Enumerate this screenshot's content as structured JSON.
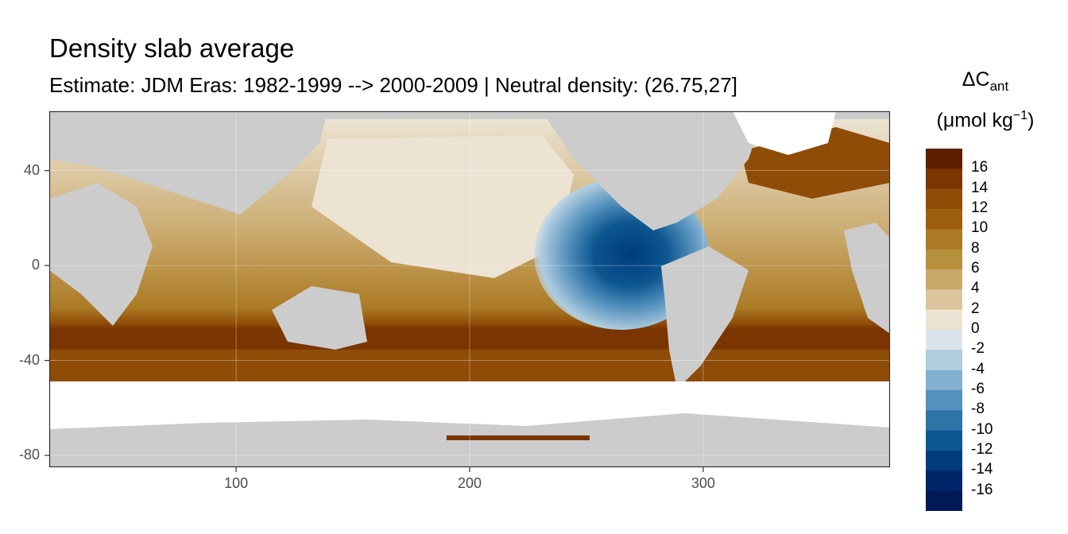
{
  "title": "Density slab average",
  "subtitle": "Estimate: JDM Eras: 1982-1999 --> 2000-2009 | Neutral density: (26.75,27]",
  "legend": {
    "title_line1": "ΔC",
    "title_sub": "ant",
    "title_line2_pre": "(μmol kg",
    "title_line2_sup": "−1",
    "title_line2_post": ")",
    "labels": [
      "16",
      "14",
      "12",
      "10",
      "8",
      "6",
      "4",
      "2",
      "0",
      "-2",
      "-4",
      "-6",
      "-8",
      "-10",
      "-12",
      "-14",
      "-16"
    ],
    "colors": [
      "#5e1f00",
      "#7a3500",
      "#8f4c07",
      "#9d5f0f",
      "#ab7a24",
      "#b88f3c",
      "#c9a86a",
      "#dcc59c",
      "#ece3d2",
      "#dae4ec",
      "#b1cde0",
      "#82b0d0",
      "#5591bd",
      "#2d74a7",
      "#0d5690",
      "#003b7e",
      "#002468",
      "#001a58"
    ]
  },
  "chart_data": {
    "type": "heatmap",
    "title": "Density slab average",
    "subtitle": "Estimate: JDM Eras: 1982-1999 --> 2000-2009 | Neutral density: (26.75,27]",
    "variable": "ΔCant",
    "units": "μmol kg−1",
    "xlim": [
      20,
      380
    ],
    "ylim": [
      -85,
      65
    ],
    "x_ticks": [
      100,
      200,
      300
    ],
    "y_ticks": [
      40,
      0,
      -40,
      -80
    ],
    "grid": true,
    "legend_position": "right",
    "color_scale_range": [
      -18,
      18
    ],
    "color_scale_step": 2
  }
}
